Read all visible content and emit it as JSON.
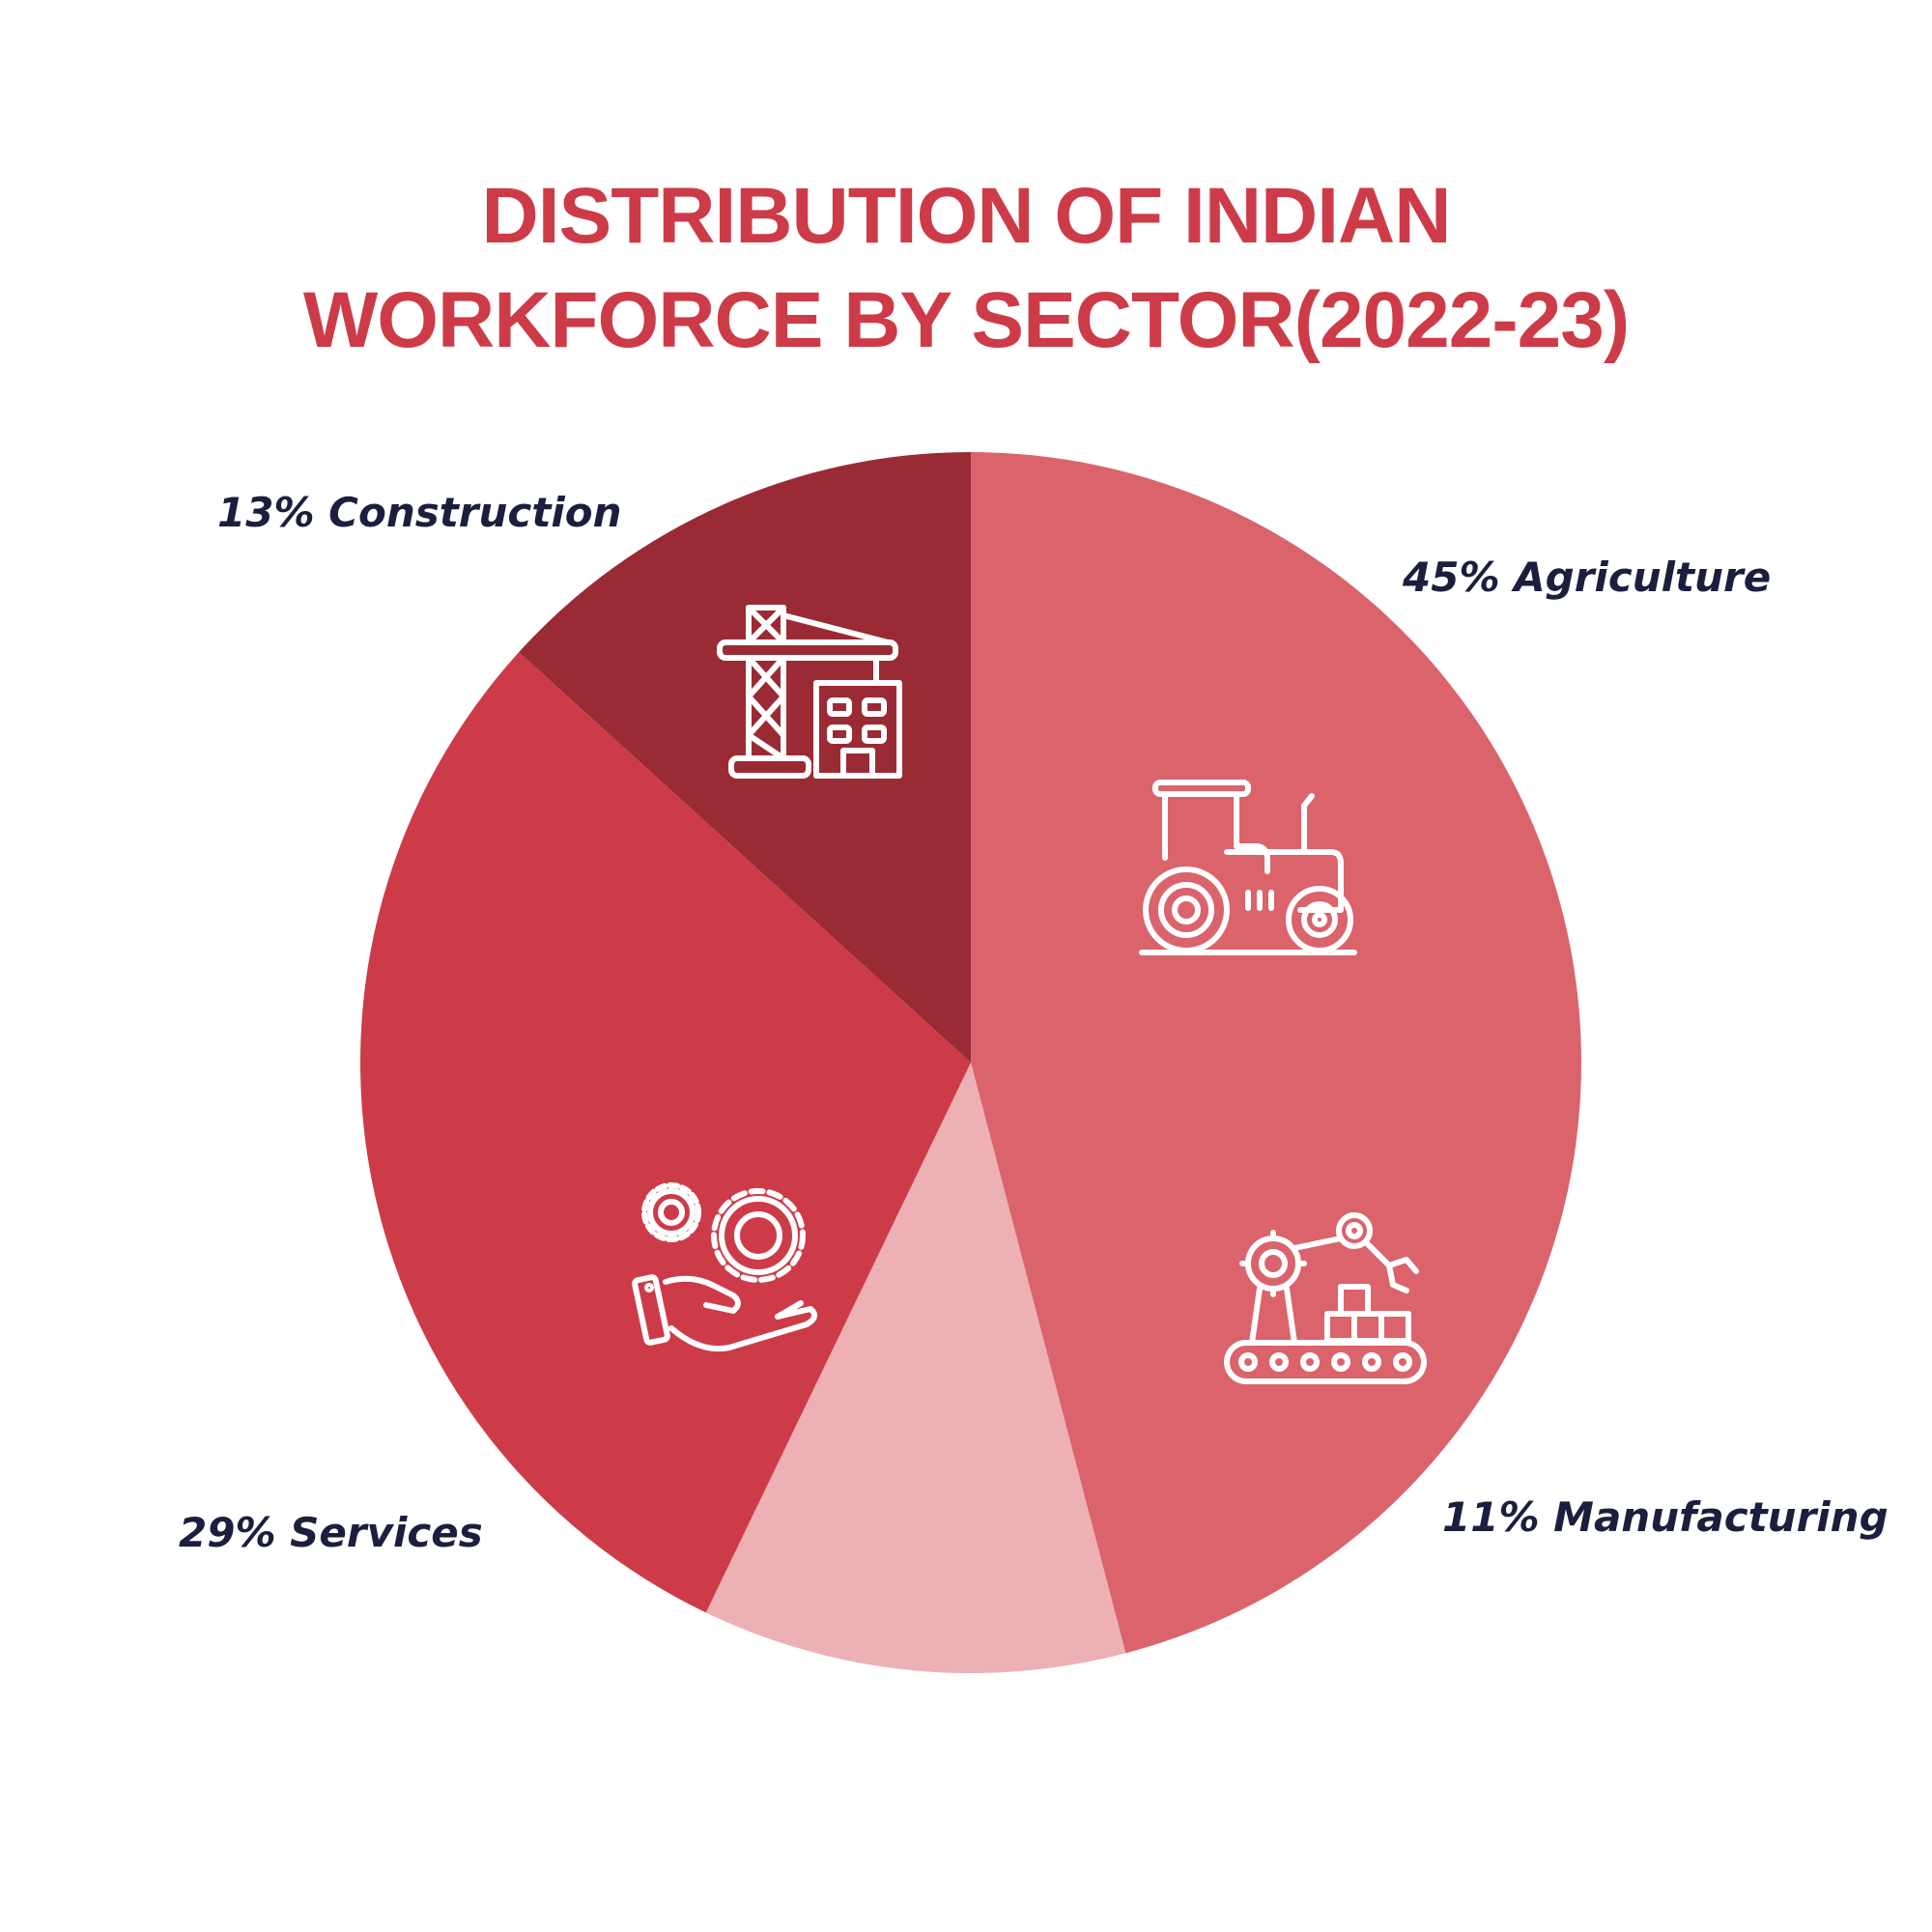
{
  "title": {
    "line1": "DISTRIBUTION OF INDIAN",
    "line2": "WORKFORCE BY SECTOR(2022-23)"
  },
  "chart_data": {
    "type": "pie",
    "categories": [
      "Agriculture",
      "Manufacturing",
      "Services",
      "Construction"
    ],
    "values": [
      45,
      11,
      29,
      13
    ],
    "unit": "%",
    "labels": [
      "45% Agriculture",
      "11% Manufacturing",
      "29% Services",
      "13% Construction"
    ],
    "colors": [
      "#da636c",
      "#ecb0b5",
      "#cd3b48",
      "#9a2b35"
    ],
    "icons": [
      "tractor-icon",
      "factory-robot-conveyor-icon",
      "gears-hand-icon",
      "crane-building-icon"
    ],
    "title_color": "#cd3b48",
    "label_color": "#1c1e3d"
  }
}
